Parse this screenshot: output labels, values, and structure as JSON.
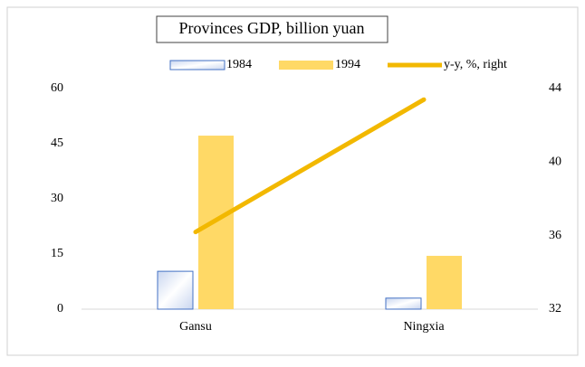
{
  "chart_data": {
    "type": "bar",
    "title": "Provinces GDP, billion yuan",
    "categories": [
      "Gansu",
      "Ningxia"
    ],
    "series": [
      {
        "name": "1984",
        "color": "#4472c4",
        "values": [
          10.3,
          3.0
        ]
      },
      {
        "name": "1994",
        "color": "#ffd966",
        "values": [
          47.2,
          14.5
        ]
      },
      {
        "name": "y-y, %, right",
        "color": "#f2b800",
        "type": "line",
        "axis": "y2",
        "values": [
          36.2,
          43.4
        ]
      }
    ],
    "ylim": [
      0,
      60
    ],
    "yticks": [
      0,
      15,
      30,
      45,
      60
    ],
    "y2lim": [
      32,
      44
    ],
    "y2ticks": [
      32,
      36,
      40,
      44
    ],
    "grid": false,
    "legend": "top"
  }
}
